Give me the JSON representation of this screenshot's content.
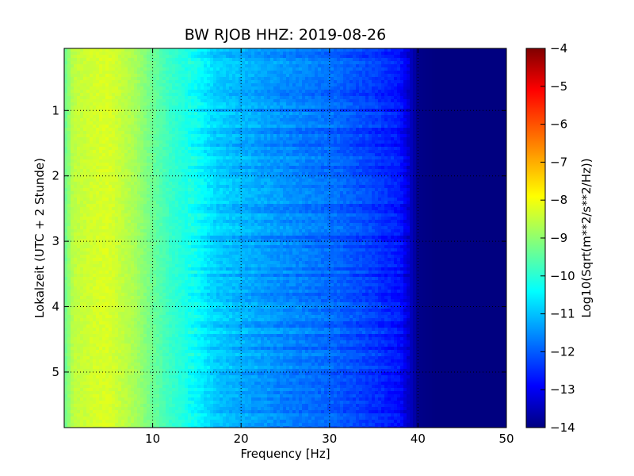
{
  "chart_data": {
    "type": "heatmap",
    "title": "BW RJOB HHZ: 2019-08-26",
    "xlabel": "Frequency [Hz]",
    "ylabel": "Lokalzeit (UTC + 2 Stunde)",
    "xlim": [
      0,
      50
    ],
    "ylim": [
      5.85,
      0.05
    ],
    "x_ticks": [
      10,
      20,
      30,
      40,
      50
    ],
    "y_ticks": [
      1,
      2,
      3,
      4,
      5
    ],
    "grid": true,
    "colormap": "jet",
    "colorbar": {
      "label": "Log10(Sqrt(m**2/s**2/Hz))",
      "range": [
        -14,
        -4
      ],
      "ticks": [
        -4,
        -5,
        -6,
        -7,
        -8,
        -9,
        -10,
        -11,
        -12,
        -13,
        -14
      ]
    },
    "frequency_profile_hz": [
      0,
      1,
      3,
      5,
      8,
      10,
      12,
      15,
      17,
      20,
      25,
      30,
      35,
      38,
      40,
      42,
      50
    ],
    "frequency_profile_log10": [
      -9.3,
      -8.4,
      -8.2,
      -8.1,
      -8.6,
      -9.2,
      -9.7,
      -10.2,
      -10.7,
      -11.0,
      -11.4,
      -11.7,
      -12.2,
      -12.6,
      -13.9,
      -14.0,
      -14.0
    ]
  }
}
